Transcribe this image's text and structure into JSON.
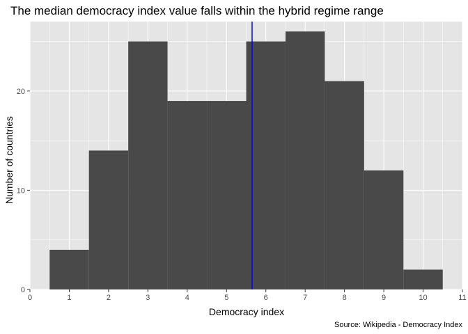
{
  "chart_data": {
    "type": "bar",
    "title": "The median democracy index value falls within the hybrid regime range",
    "xlabel": "Democracy index",
    "ylabel": "Number of countries",
    "caption": "Source: Wikipedia - Democracy Index",
    "xlim": [
      0,
      11
    ],
    "ylim": [
      0,
      27
    ],
    "xticks": [
      "0",
      "1",
      "2",
      "3",
      "4",
      "5",
      "6",
      "7",
      "8",
      "9",
      "10",
      "11"
    ],
    "yticks": [
      "0",
      "10",
      "20"
    ],
    "bins": [
      {
        "x0": 0.5,
        "x1": 1.5,
        "count": 4
      },
      {
        "x0": 1.5,
        "x1": 2.5,
        "count": 14
      },
      {
        "x0": 2.5,
        "x1": 3.5,
        "count": 25
      },
      {
        "x0": 3.5,
        "x1": 4.5,
        "count": 19
      },
      {
        "x0": 4.5,
        "x1": 5.5,
        "count": 19
      },
      {
        "x0": 5.5,
        "x1": 6.5,
        "count": 25
      },
      {
        "x0": 6.5,
        "x1": 7.5,
        "count": 26
      },
      {
        "x0": 7.5,
        "x1": 8.5,
        "count": 21
      },
      {
        "x0": 8.5,
        "x1": 9.5,
        "count": 12
      },
      {
        "x0": 9.5,
        "x1": 10.5,
        "count": 2
      }
    ],
    "median": 5.65,
    "grid": true,
    "colors": {
      "bar": "#494949",
      "median_line": "#0000ff",
      "panel": "#e5e5e5",
      "grid": "#ffffff"
    }
  }
}
